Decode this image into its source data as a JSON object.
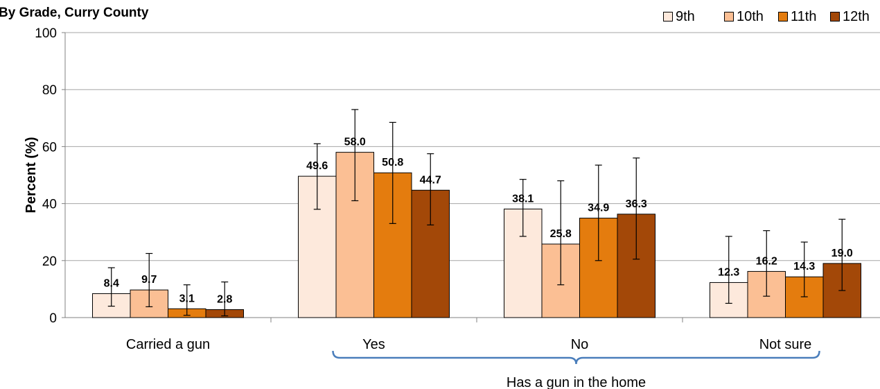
{
  "chart_data": {
    "type": "bar",
    "title": "By Grade, Curry County",
    "ylabel": "Percent (%)",
    "xlabel": "",
    "ylim": [
      0,
      100
    ],
    "yticks": [
      0,
      20,
      40,
      60,
      80,
      100
    ],
    "grid": true,
    "legend_position": "top-right",
    "categories": [
      "Carried a gun",
      "Yes",
      "No",
      "Not sure"
    ],
    "group_label": "Has a gun in the home",
    "group_categories": [
      "Yes",
      "No",
      "Not sure"
    ],
    "series": [
      {
        "name": "9th",
        "color": "#FDE9DC",
        "values": [
          8.4,
          49.6,
          38.1,
          12.3
        ],
        "ci_low": [
          4.0,
          38.0,
          28.5,
          5.0
        ],
        "ci_high": [
          17.5,
          61.0,
          48.5,
          28.5
        ]
      },
      {
        "name": "10th",
        "color": "#FBBF94",
        "values": [
          9.7,
          58.0,
          25.8,
          16.2
        ],
        "ci_low": [
          3.8,
          41.0,
          11.5,
          7.5
        ],
        "ci_high": [
          22.5,
          73.0,
          48.0,
          30.5
        ]
      },
      {
        "name": "11th",
        "color": "#E47C0E",
        "values": [
          3.1,
          50.8,
          34.9,
          14.3
        ],
        "ci_low": [
          0.8,
          33.0,
          20.0,
          7.3
        ],
        "ci_high": [
          11.5,
          68.5,
          53.5,
          26.5
        ]
      },
      {
        "name": "12th",
        "color": "#A34808",
        "values": [
          2.8,
          44.7,
          36.3,
          19.0
        ],
        "ci_low": [
          0.6,
          32.5,
          20.5,
          9.5
        ],
        "ci_high": [
          12.5,
          57.5,
          56.0,
          34.5
        ]
      }
    ],
    "data_labels": [
      [
        "8.4",
        "49.6",
        "38.1",
        "12.3"
      ],
      [
        "9.7",
        "58.0",
        "25.8",
        "16.2"
      ],
      [
        "3.1",
        "50.8",
        "34.9",
        "14.3"
      ],
      [
        "2.8",
        "44.7",
        "36.3",
        "19.0"
      ]
    ]
  }
}
